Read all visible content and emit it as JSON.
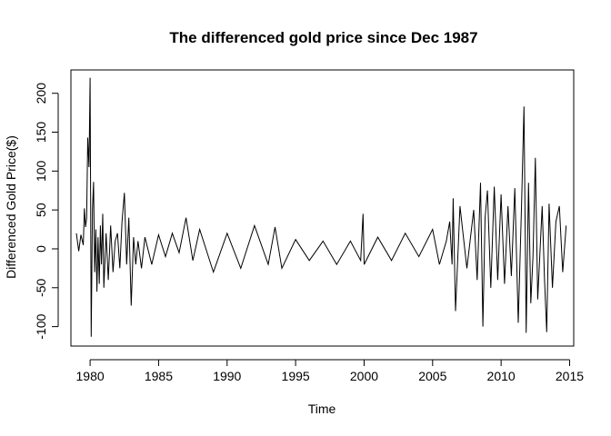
{
  "chart_data": {
    "type": "line",
    "title": "The differenced gold price since Dec 1987",
    "xlabel": "Time",
    "ylabel": "Differenced Gold Price($)",
    "xlim": [
      1978.6,
      2015.3
    ],
    "ylim": [
      -125,
      230
    ],
    "xticks": [
      1980,
      1985,
      1990,
      1995,
      2000,
      2005,
      2010,
      2015
    ],
    "yticks": [
      -100,
      -50,
      0,
      50,
      100,
      150,
      200
    ],
    "grid": false,
    "legend": "none",
    "series_color": "#000000",
    "series": [
      {
        "x": [
          1979.0,
          1979.17,
          1979.33,
          1979.5,
          1979.58,
          1979.67,
          1979.75,
          1979.83,
          1979.92,
          1980.0,
          1980.08,
          1980.17,
          1980.25,
          1980.33,
          1980.42,
          1980.5,
          1980.58,
          1980.67,
          1980.75,
          1980.83,
          1980.92,
          1981.0,
          1981.17,
          1981.33,
          1981.5,
          1981.67,
          1981.83,
          1982.0,
          1982.17,
          1982.33,
          1982.5,
          1982.67,
          1982.83,
          1983.0,
          1983.17,
          1983.33,
          1983.5,
          1983.75,
          1984.0,
          1984.5,
          1985.0,
          1985.5,
          1986.0,
          1986.5,
          1987.0,
          1987.5,
          1988.0,
          1989.0,
          1990.0,
          1991.0,
          1992.0,
          1993.0,
          1993.5,
          1994.0,
          1995.0,
          1996.0,
          1997.0,
          1998.0,
          1999.0,
          1999.75,
          1999.92,
          2000.0,
          2001.0,
          2002.0,
          2003.0,
          2004.0,
          2005.0,
          2005.5,
          2006.0,
          2006.25,
          2006.42,
          2006.5,
          2006.67,
          2007.0,
          2007.5,
          2008.0,
          2008.25,
          2008.5,
          2008.67,
          2008.83,
          2009.0,
          2009.25,
          2009.5,
          2009.75,
          2010.0,
          2010.25,
          2010.5,
          2010.75,
          2011.0,
          2011.25,
          2011.5,
          2011.67,
          2011.83,
          2012.0,
          2012.17,
          2012.33,
          2012.5,
          2012.67,
          2013.0,
          2013.17,
          2013.33,
          2013.5,
          2013.75,
          2014.0,
          2014.25,
          2014.5,
          2014.75
        ],
        "y": [
          20,
          -3,
          18,
          5,
          52,
          28,
          40,
          143,
          105,
          220,
          -113,
          50,
          86,
          -30,
          25,
          -55,
          15,
          -45,
          30,
          -20,
          45,
          -50,
          20,
          -40,
          30,
          -30,
          10,
          20,
          -25,
          35,
          72,
          -20,
          40,
          -73,
          15,
          -20,
          10,
          -25,
          15,
          -20,
          18,
          -10,
          20,
          -5,
          40,
          -15,
          25,
          -30,
          20,
          -25,
          30,
          -20,
          28,
          -25,
          12,
          -15,
          10,
          -20,
          10,
          -15,
          45,
          -20,
          15,
          -15,
          20,
          -10,
          25,
          -20,
          10,
          35,
          -20,
          65,
          -80,
          55,
          -25,
          50,
          -40,
          85,
          -100,
          40,
          75,
          -50,
          80,
          -40,
          70,
          -45,
          55,
          -35,
          78,
          -95,
          60,
          183,
          -108,
          85,
          -70,
          -10,
          117,
          -65,
          55,
          -40,
          -107,
          58,
          -50,
          35,
          55,
          -30,
          30
        ]
      }
    ]
  }
}
